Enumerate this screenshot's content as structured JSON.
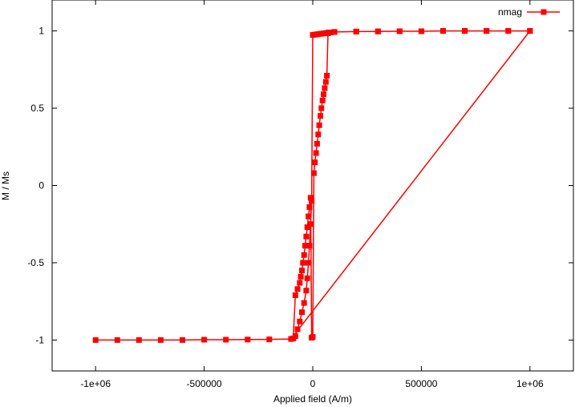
{
  "chart_data": {
    "type": "line",
    "title": "",
    "xlabel": "Applied field (A/m)",
    "ylabel": "M / Ms",
    "xlim": [
      -1200000,
      1200000
    ],
    "ylim": [
      -1.2,
      1.2
    ],
    "grid": false,
    "legend_position": "top-right",
    "x_ticks": [
      -1000000,
      -500000,
      0,
      500000,
      1000000
    ],
    "x_tick_labels": [
      "-1e+06",
      "-500000",
      "0",
      "500000",
      "1e+06"
    ],
    "y_ticks": [
      -1,
      -0.5,
      0,
      0.5,
      1
    ],
    "y_tick_labels": [
      "-1",
      "-0.5",
      "0",
      "0.5",
      "1"
    ],
    "colors": {
      "series": "#ff0000",
      "axis": "#000000"
    },
    "series": [
      {
        "name": "nmag",
        "marker": "square",
        "x": [
          1000000,
          900000,
          800000,
          700000,
          600000,
          500000,
          400000,
          300000,
          200000,
          100000,
          80000,
          70000,
          60000,
          50000,
          40000,
          30000,
          20000,
          10000,
          0,
          -5000,
          -10000,
          -15000,
          -20000,
          -25000,
          -30000,
          -40000,
          -50000,
          -60000,
          -70000,
          -80000,
          -90000,
          -90000,
          -80000,
          -70000,
          -60000,
          -55000,
          -50000,
          -45000,
          -40000,
          -35000,
          -30000,
          -25000,
          -20000,
          -15000,
          -10000,
          -5000,
          0,
          5000,
          10000,
          15000,
          20000,
          25000,
          30000,
          35000,
          40000,
          45000,
          50000,
          55000,
          60000,
          65000,
          70000,
          75000,
          80000,
          100000,
          200000,
          300000,
          400000,
          500000,
          600000,
          700000,
          800000,
          900000,
          1000000,
          -100000,
          -200000,
          -300000,
          -400000,
          -500000,
          -600000,
          -700000,
          -800000,
          -900000,
          -1000000
        ],
        "y": [
          1.0,
          1.0,
          1.0,
          1.0,
          1.0,
          0.998,
          0.998,
          0.997,
          0.996,
          0.993,
          0.99,
          0.988,
          0.986,
          0.984,
          0.982,
          0.98,
          0.978,
          0.976,
          0.974,
          -0.1,
          -0.25,
          -0.39,
          -0.5,
          -0.6,
          -0.68,
          -0.76,
          -0.82,
          -0.88,
          -0.93,
          -0.975,
          -0.99,
          -0.99,
          -0.71,
          -0.67,
          -0.63,
          -0.59,
          -0.55,
          -0.5,
          -0.45,
          -0.39,
          -0.33,
          -0.27,
          -0.2,
          -0.14,
          -0.08,
          -0.985,
          -0.98,
          0.08,
          0.15,
          0.21,
          0.27,
          0.33,
          0.39,
          0.45,
          0.5,
          0.55,
          0.59,
          0.63,
          0.67,
          0.71,
          0.985,
          0.99,
          0.99,
          0.993,
          0.996,
          0.997,
          0.998,
          0.998,
          1.0,
          1.0,
          1.0,
          1.0,
          1.0,
          -0.993,
          -0.996,
          -0.997,
          -0.998,
          -0.998,
          -1.0,
          -1.0,
          -1.0,
          -1.0,
          -1.0
        ]
      }
    ]
  }
}
